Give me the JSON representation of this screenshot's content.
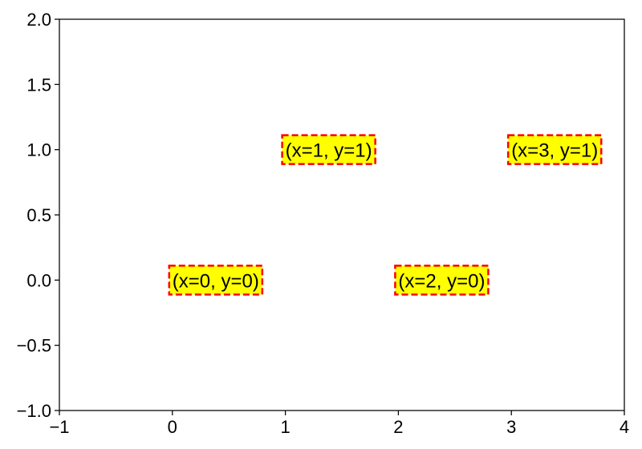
{
  "chart_data": {
    "type": "scatter",
    "title": "",
    "xlabel": "",
    "ylabel": "",
    "xlim": [
      -1,
      4
    ],
    "ylim": [
      -1,
      2
    ],
    "x_ticks": [
      -1,
      0,
      1,
      2,
      3,
      4
    ],
    "x_tick_labels": [
      "−1",
      "0",
      "1",
      "2",
      "3",
      "4"
    ],
    "y_ticks": [
      -1.0,
      -0.5,
      0.0,
      0.5,
      1.0,
      1.5,
      2.0
    ],
    "y_tick_labels": [
      "−1.0",
      "−0.5",
      "0.0",
      "0.5",
      "1.0",
      "1.5",
      "2.0"
    ],
    "grid": false,
    "annotations": [
      {
        "x": 0,
        "y": 0,
        "text": "(x=0, y=0)"
      },
      {
        "x": 1,
        "y": 1,
        "text": "(x=1, y=1)"
      },
      {
        "x": 2,
        "y": 0,
        "text": "(x=2, y=0)"
      },
      {
        "x": 3,
        "y": 1,
        "text": "(x=3, y=1)"
      }
    ],
    "annotation_style": {
      "box_fill": "#ffff00",
      "box_edge": "#ff0000",
      "edge_style": "dashed"
    }
  }
}
